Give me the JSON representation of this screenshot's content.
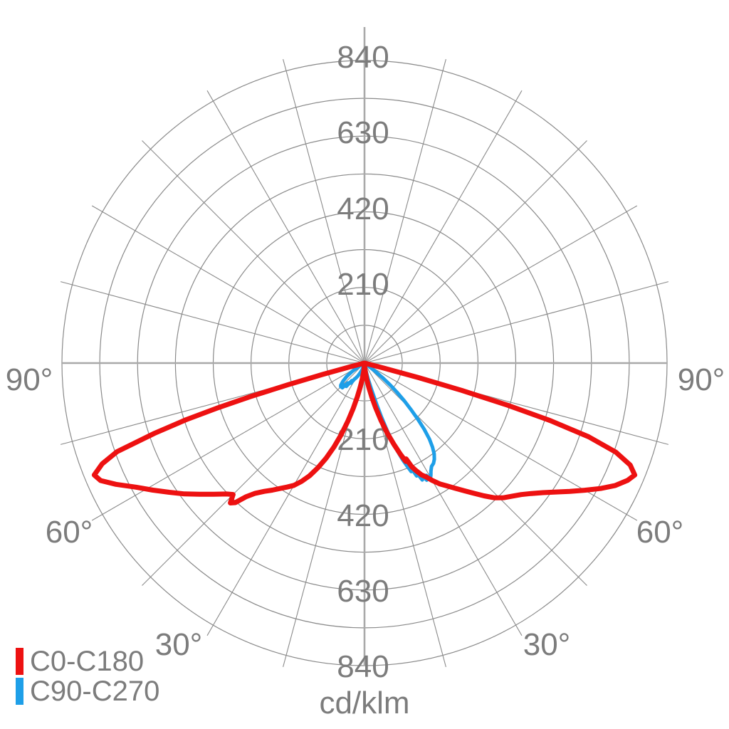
{
  "chart_data": {
    "type": "line",
    "subtype": "polar-photometric-light-distribution",
    "title": "",
    "unit_label": "cd/klm",
    "orientation": "0-deg-at-bottom-90-deg-horizontal",
    "radial_axis": {
      "min": 0,
      "max": 840,
      "circle_step": 105,
      "tick_labels": [
        210,
        420,
        630,
        840
      ],
      "tick_label_positions": "vertical-axis-above-and-below-center"
    },
    "angle_axis": {
      "line_step_deg": 15,
      "labels": [
        "90°",
        "60°",
        "30°"
      ]
    },
    "grid": true,
    "legend": {
      "position": "bottom-left",
      "items": [
        {
          "label": "C0-C180",
          "color": "#ed1111"
        },
        {
          "label": "C90-C270",
          "color": "#1e9fe8"
        }
      ]
    },
    "series": [
      {
        "name": "C0-C180",
        "color": "#ed1111",
        "points": [
          [
            -90,
            0
          ],
          [
            -77,
            0
          ],
          [
            -75.5,
            35
          ],
          [
            -74.8,
            120
          ],
          [
            -74.2,
            220
          ],
          [
            -73.6,
            330
          ],
          [
            -73,
            430
          ],
          [
            -72.4,
            520
          ],
          [
            -71.5,
            615
          ],
          [
            -70.3,
            730
          ],
          [
            -69,
            780
          ],
          [
            -67.5,
            812
          ],
          [
            -66,
            802
          ],
          [
            -64,
            768
          ],
          [
            -61.5,
            722
          ],
          [
            -59,
            685
          ],
          [
            -56.5,
            650
          ],
          [
            -54,
            618
          ],
          [
            -51.5,
            585
          ],
          [
            -49,
            555
          ],
          [
            -46.5,
            528
          ],
          [
            -45,
            516
          ],
          [
            -43.8,
            538
          ],
          [
            -42.8,
            528
          ],
          [
            -41.5,
            495
          ],
          [
            -40,
            472
          ],
          [
            -38,
            452
          ],
          [
            -36,
            436
          ],
          [
            -34,
            420
          ],
          [
            -32,
            406
          ],
          [
            -30,
            392
          ],
          [
            -28,
            372
          ],
          [
            -26,
            348
          ],
          [
            -24,
            318
          ],
          [
            -22,
            285
          ],
          [
            -20,
            248
          ],
          [
            -18,
            208
          ],
          [
            -16,
            168
          ],
          [
            -14,
            130
          ],
          [
            -12,
            96
          ],
          [
            -10,
            68
          ],
          [
            -8,
            44
          ],
          [
            -6,
            26
          ],
          [
            -4,
            12
          ],
          [
            -2,
            4
          ],
          [
            0,
            2
          ],
          [
            2,
            5
          ],
          [
            4,
            14
          ],
          [
            6,
            28
          ],
          [
            8,
            46
          ],
          [
            10,
            68
          ],
          [
            12,
            95
          ],
          [
            14,
            128
          ],
          [
            16,
            165
          ],
          [
            18,
            205
          ],
          [
            20,
            242
          ],
          [
            21.5,
            272
          ],
          [
            22.8,
            296
          ],
          [
            23.5,
            290
          ],
          [
            24.5,
            316
          ],
          [
            25.5,
            330
          ],
          [
            27,
            348
          ],
          [
            28.5,
            360
          ],
          [
            30,
            376
          ],
          [
            32,
            396
          ],
          [
            34,
            412
          ],
          [
            36,
            430
          ],
          [
            38,
            450
          ],
          [
            40,
            472
          ],
          [
            42,
            496
          ],
          [
            44,
            520
          ],
          [
            46,
            538
          ],
          [
            48,
            552
          ],
          [
            50,
            568
          ],
          [
            52,
            588
          ],
          [
            54,
            612
          ],
          [
            56,
            640
          ],
          [
            58,
            672
          ],
          [
            60,
            706
          ],
          [
            62,
            742
          ],
          [
            64,
            775
          ],
          [
            66,
            800
          ],
          [
            67.5,
            812
          ],
          [
            69,
            790
          ],
          [
            70.5,
            740
          ],
          [
            71.8,
            655
          ],
          [
            72.8,
            540
          ],
          [
            73.6,
            415
          ],
          [
            74.3,
            280
          ],
          [
            74.9,
            155
          ],
          [
            75.5,
            55
          ],
          [
            76.2,
            0
          ],
          [
            90,
            0
          ]
        ]
      },
      {
        "name": "C90-C270",
        "color": "#1e9fe8",
        "points": [
          [
            -63,
            0
          ],
          [
            -59,
            18
          ],
          [
            -56,
            40
          ],
          [
            -53,
            62
          ],
          [
            -50,
            78
          ],
          [
            -47,
            90
          ],
          [
            -45,
            93
          ],
          [
            -43.5,
            84
          ],
          [
            -42,
            92
          ],
          [
            -40,
            72
          ],
          [
            -38,
            82
          ],
          [
            -36,
            60
          ],
          [
            -34,
            67
          ],
          [
            -32,
            52
          ],
          [
            -30,
            48
          ],
          [
            -27,
            40
          ],
          [
            -24,
            30
          ],
          [
            -20,
            20
          ],
          [
            -15,
            10
          ],
          [
            -8,
            4
          ],
          [
            0,
            2
          ],
          [
            6,
            8
          ],
          [
            10,
            20
          ],
          [
            13,
            45
          ],
          [
            15,
            80
          ],
          [
            16.5,
            120
          ],
          [
            17.5,
            158
          ],
          [
            18.5,
            196
          ],
          [
            19.5,
            230
          ],
          [
            20.5,
            260
          ],
          [
            21.5,
            288
          ],
          [
            22.5,
            310
          ],
          [
            23.3,
            328
          ],
          [
            24,
            320
          ],
          [
            24.8,
            345
          ],
          [
            25.5,
            338
          ],
          [
            26.3,
            362
          ],
          [
            27.2,
            350
          ],
          [
            28,
            368
          ],
          [
            28.8,
            356
          ],
          [
            29.6,
            370
          ],
          [
            30.6,
            362
          ],
          [
            31.6,
            352
          ],
          [
            33,
            342
          ],
          [
            34.5,
            338
          ],
          [
            36,
            330
          ],
          [
            37.5,
            318
          ],
          [
            39,
            300
          ],
          [
            40.5,
            278
          ],
          [
            42,
            248
          ],
          [
            43.5,
            216
          ],
          [
            45,
            182
          ],
          [
            46.5,
            152
          ],
          [
            48,
            122
          ],
          [
            49.5,
            95
          ],
          [
            51,
            65
          ],
          [
            52.5,
            38
          ],
          [
            54,
            15
          ],
          [
            56,
            0
          ]
        ]
      }
    ]
  },
  "styles": {
    "background": "#ffffff",
    "text_color": "#7c7c7c",
    "grid_color": "#8a8a8a",
    "axis_color": "#a9a9a9"
  }
}
